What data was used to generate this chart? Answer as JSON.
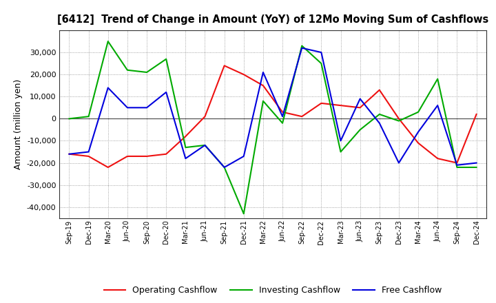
{
  "title": "[6412]  Trend of Change in Amount (YoY) of 12Mo Moving Sum of Cashflows",
  "ylabel": "Amount (million yen)",
  "x_labels": [
    "Sep-19",
    "Dec-19",
    "Mar-20",
    "Jun-20",
    "Sep-20",
    "Dec-20",
    "Mar-21",
    "Jun-21",
    "Sep-21",
    "Dec-21",
    "Mar-22",
    "Jun-22",
    "Sep-22",
    "Dec-22",
    "Mar-23",
    "Jun-23",
    "Sep-23",
    "Dec-23",
    "Mar-24",
    "Jun-24",
    "Sep-24",
    "Dec-24"
  ],
  "operating": [
    -16000,
    -17000,
    -22000,
    -17000,
    -17000,
    -16000,
    -8000,
    1000,
    24000,
    20000,
    15000,
    3000,
    1000,
    7000,
    6000,
    5000,
    13000,
    0,
    -11000,
    -18000,
    -20000,
    2000
  ],
  "investing": [
    0,
    1000,
    35000,
    22000,
    21000,
    27000,
    -13000,
    -12000,
    -22000,
    -43000,
    8000,
    -2000,
    33000,
    25000,
    -15000,
    -5000,
    2000,
    -1000,
    3000,
    18000,
    -22000,
    -22000
  ],
  "free": [
    -16000,
    -15000,
    14000,
    5000,
    5000,
    12000,
    -18000,
    -12000,
    -22000,
    -17000,
    21000,
    1000,
    32000,
    30000,
    -10000,
    9000,
    -2000,
    -20000,
    -6000,
    6000,
    -21000,
    -20000
  ],
  "colors": {
    "operating": "#EE1111",
    "investing": "#00AA00",
    "free": "#0000DD"
  },
  "ylim": [
    -45000,
    40000
  ],
  "yticks": [
    -40000,
    -30000,
    -20000,
    -10000,
    0,
    10000,
    20000,
    30000
  ],
  "legend_labels": [
    "Operating Cashflow",
    "Investing Cashflow",
    "Free Cashflow"
  ],
  "bg_color": "#FFFFFF",
  "grid_color": "#888888"
}
